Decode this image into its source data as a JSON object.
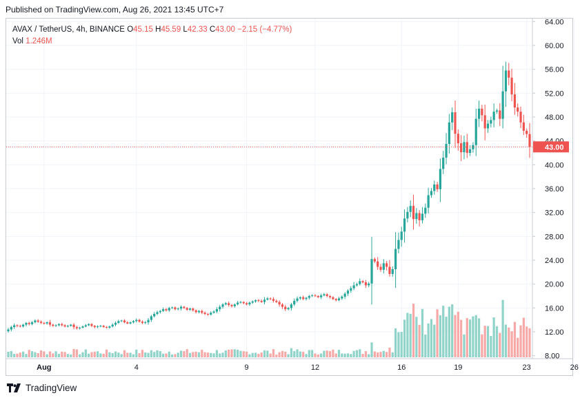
{
  "header": {
    "published": "Published on TradingView.com, Aug 26, 2021 13:45 UTC+7"
  },
  "legend": {
    "symbol": "AVAX / TetherUS, 4h, BINANCE",
    "o_label": "O",
    "o_val": "45.15",
    "h_label": "H",
    "h_val": "45.59",
    "l_label": "L",
    "l_val": "42.33",
    "c_label": "C",
    "c_val": "43.00",
    "change": "−2.15 (−4.77%)",
    "vol_label": "Vol",
    "vol_val": "1.246M"
  },
  "footer": {
    "brand": "TradingView"
  },
  "colors": {
    "up": "#26a69a",
    "down": "#ef5350",
    "vol_up": "#8fd3c9",
    "vol_down": "#f7a9a7",
    "grid": "#f0f3fa"
  },
  "chart_data": {
    "type": "candlestick",
    "y_ticks": [
      "64.00",
      "60.00",
      "56.00",
      "52.00",
      "48.00",
      "44.00",
      "40.00",
      "36.00",
      "32.00",
      "28.00",
      "24.00",
      "20.00",
      "16.00",
      "12.00",
      "8.00"
    ],
    "x_ticks": [
      "Aug",
      "4",
      "9",
      "12",
      "16",
      "19",
      "23",
      "26"
    ],
    "last_price_label": "43.00",
    "ylim": [
      7.5,
      64.5
    ],
    "grid": true,
    "closes": [
      12.4,
      12.8,
      13.1,
      13.0,
      12.9,
      13.2,
      13.5,
      13.3,
      13.6,
      13.9,
      13.7,
      13.5,
      13.4,
      13.6,
      13.2,
      13.0,
      13.1,
      13.3,
      13.1,
      12.9,
      13.0,
      13.2,
      12.8,
      12.6,
      12.7,
      12.9,
      13.1,
      13.3,
      13.0,
      12.8,
      12.9,
      13.0,
      12.8,
      12.7,
      12.9,
      13.2,
      13.5,
      13.8,
      13.9,
      13.6,
      13.4,
      13.6,
      13.8,
      14.0,
      13.7,
      13.5,
      13.6,
      14.0,
      14.6,
      15.0,
      15.3,
      15.5,
      15.8,
      15.6,
      16.0,
      16.1,
      15.8,
      15.9,
      16.2,
      16.0,
      15.7,
      15.9,
      15.6,
      15.3,
      15.5,
      15.2,
      15.0,
      14.9,
      15.2,
      15.4,
      15.8,
      16.2,
      16.6,
      16.8,
      16.5,
      16.3,
      16.6,
      16.9,
      17.0,
      16.8,
      16.6,
      16.9,
      17.1,
      17.3,
      17.2,
      17.0,
      17.4,
      17.6,
      17.5,
      17.2,
      17.0,
      16.6,
      16.2,
      15.8,
      16.0,
      16.6,
      17.2,
      17.6,
      17.8,
      17.5,
      17.7,
      18.0,
      18.1,
      18.0,
      17.8,
      18.1,
      18.3,
      18.0,
      17.8,
      17.5,
      17.3,
      17.6,
      17.9,
      18.4,
      18.9,
      19.3,
      19.8,
      20.0,
      20.5,
      20.3,
      19.8,
      20.1,
      24.2,
      23.8,
      22.9,
      22.4,
      23.5,
      22.9,
      21.7,
      22.5,
      25.9,
      27.4,
      28.8,
      31.0,
      32.1,
      33.1,
      30.9,
      31.9,
      30.7,
      31.8,
      32.8,
      34.9,
      35.6,
      36.7,
      35.9,
      39.3,
      41.2,
      43.5,
      47.1,
      48.8,
      45.2,
      43.6,
      42.1,
      43.8,
      42.0,
      42.6,
      43.3,
      47.7,
      49.4,
      48.3,
      46.1,
      46.9,
      47.5,
      48.9,
      49.1,
      47.7,
      52.3,
      55.8,
      54.6,
      51.8,
      49.6,
      48.9,
      47.1,
      45.7,
      45.15,
      43.0
    ]
  }
}
